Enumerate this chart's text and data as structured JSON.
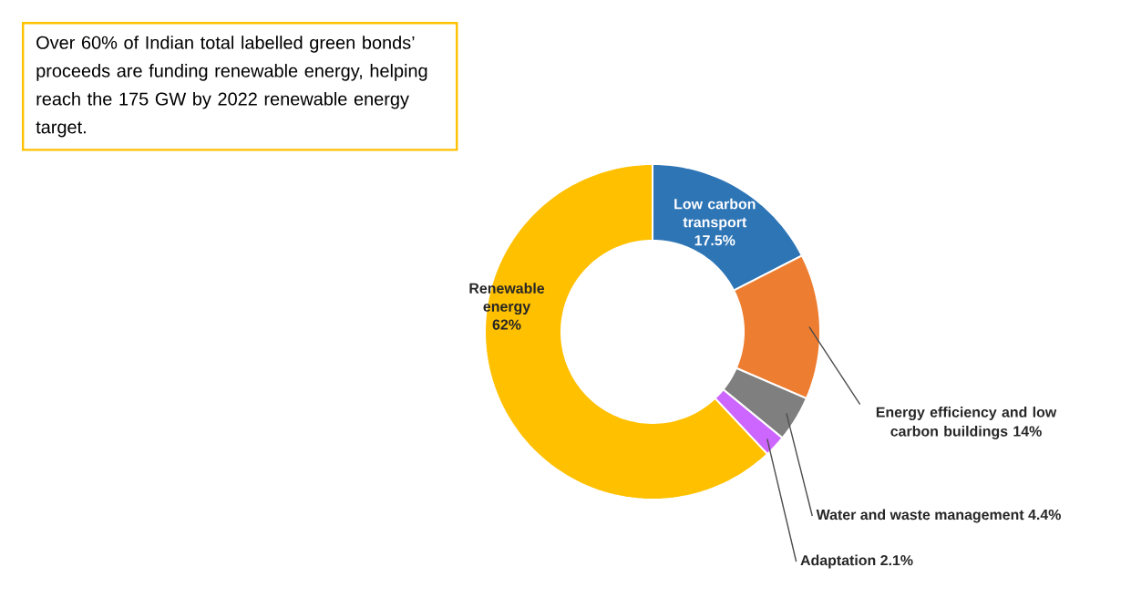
{
  "chart_data": {
    "type": "donut",
    "categories": [
      "Low carbon transport",
      "Energy efficiency and low carbon buildings",
      "Water and waste management",
      "Adaptation",
      "Renewable energy"
    ],
    "values": [
      17.5,
      14,
      4.4,
      2.1,
      62
    ],
    "value_labels": [
      "17.5%",
      "14%",
      "4.4%",
      "2.1%",
      "62%"
    ],
    "colors": [
      "#2e75b6",
      "#ed7d31",
      "#7f7f7f",
      "#cc66ff",
      "#ffc000"
    ],
    "annotations": [
      "Over 60% of Indian total labelled green bonds’ proceeds are funding renewable energy, helping reach the 175 GW by 2022 renewable energy target."
    ]
  }
}
